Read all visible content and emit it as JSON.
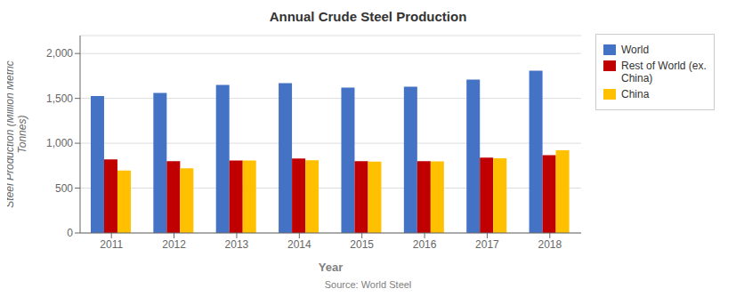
{
  "chart_data": {
    "type": "bar",
    "title": "Annual Crude Steel Production",
    "xlabel": "Year",
    "ylabel": "Steel Production (Million Metric\nTonnes)",
    "source": "Source: World Steel",
    "categories": [
      "2011",
      "2012",
      "2013",
      "2014",
      "2015",
      "2016",
      "2017",
      "2018"
    ],
    "series": [
      {
        "name": "World",
        "color": "#4472C4",
        "values": [
          1527,
          1560,
          1650,
          1670,
          1620,
          1630,
          1710,
          1808
        ]
      },
      {
        "name": "Rest of World (ex.\nChina)",
        "color": "#C00000",
        "values": [
          820,
          800,
          808,
          830,
          800,
          800,
          840,
          868
        ]
      },
      {
        "name": "China",
        "color": "#FFC000",
        "values": [
          695,
          720,
          807,
          810,
          795,
          797,
          832,
          921
        ]
      }
    ],
    "ylim": [
      0,
      2200
    ],
    "yticks": [
      0,
      500,
      {
        "value": 1000,
        "label": "1,000"
      },
      {
        "value": 1500,
        "label": "1,500"
      },
      {
        "value": 2000,
        "label": "2,000"
      }
    ],
    "grid": true,
    "legend": "right"
  }
}
